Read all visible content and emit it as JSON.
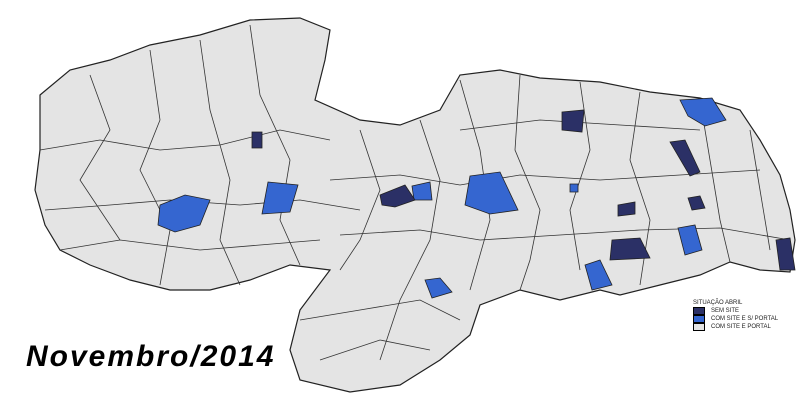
{
  "title": "Novembro/2014",
  "legend": {
    "heading": "SITUAÇÃO ABRIL",
    "items": [
      {
        "label": "SEM SITE",
        "color": "#2b3066"
      },
      {
        "label": "COM SITE E S/ PORTAL",
        "color": "#3566d0"
      },
      {
        "label": "COM SITE E PORTAL",
        "color": "#e4e4e4"
      }
    ]
  },
  "colors": {
    "border": "#222222",
    "background": "#ffffff"
  }
}
